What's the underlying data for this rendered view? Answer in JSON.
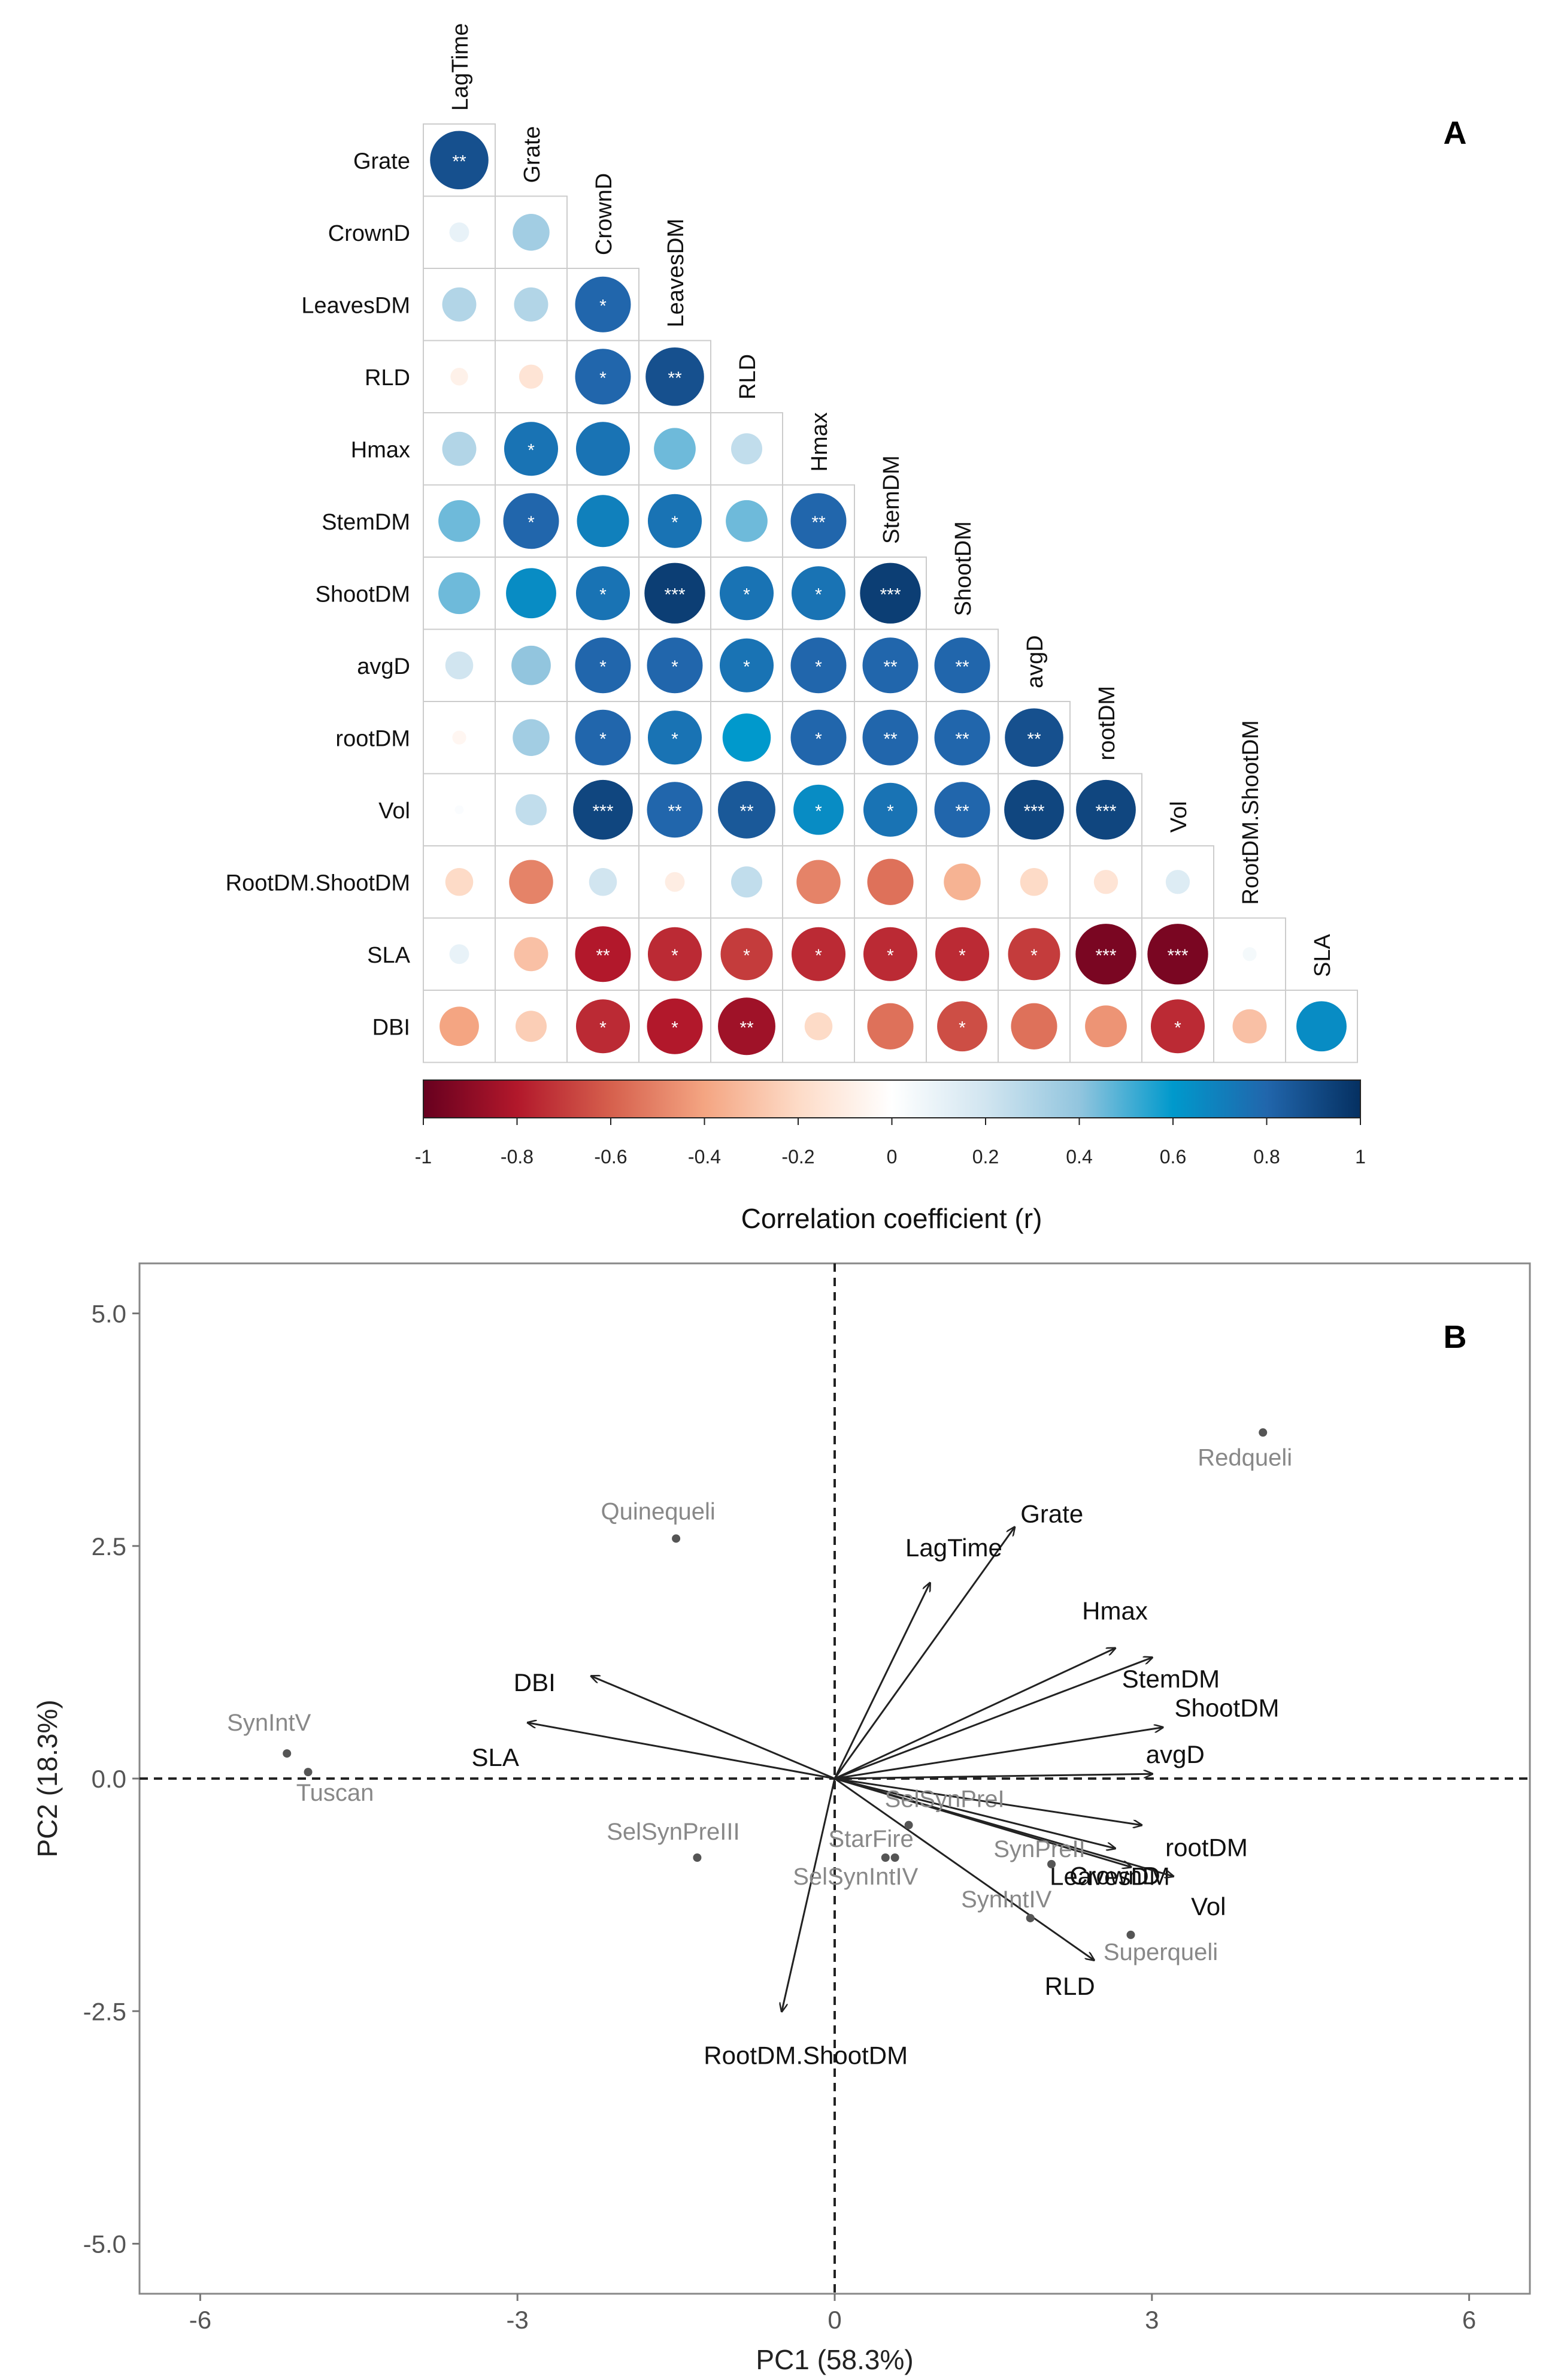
{
  "panels": {
    "a_label": "A",
    "b_label": "B"
  },
  "chart_data": [
    {
      "type": "heatmap",
      "style": "correlogram (lower triangle, circle size and colour = r)",
      "variables": [
        "LagTime",
        "Grate",
        "CrownD",
        "LeavesDM",
        "RLD",
        "Hmax",
        "StemDM",
        "ShootDM",
        "avgD",
        "rootDM",
        "Vol",
        "RootDM.ShootDM",
        "SLA",
        "DBI"
      ],
      "row_labels": [
        "Grate",
        "CrownD",
        "LeavesDM",
        "RLD",
        "Hmax",
        "StemDM",
        "ShootDM",
        "avgD",
        "rootDM",
        "Vol",
        "RootDM.ShootDM",
        "SLA",
        "DBI"
      ],
      "col_labels": [
        "LagTime",
        "Grate",
        "CrownD",
        "LeavesDM",
        "RLD",
        "Hmax",
        "StemDM",
        "ShootDM",
        "avgD",
        "rootDM",
        "Vol",
        "RootDM.ShootDM",
        "SLA"
      ],
      "values": [
        [
          0.88
        ],
        [
          0.1,
          0.35
        ],
        [
          0.3,
          0.3,
          0.8
        ],
        [
          -0.08,
          -0.15,
          0.8,
          0.88
        ],
        [
          0.3,
          0.75,
          0.75,
          0.45,
          0.25
        ],
        [
          0.45,
          0.8,
          0.7,
          0.75,
          0.45,
          0.8
        ],
        [
          0.45,
          0.65,
          0.75,
          0.95,
          0.75,
          0.75,
          0.95
        ],
        [
          0.2,
          0.4,
          0.8,
          0.8,
          0.75,
          0.8,
          0.8,
          0.8
        ],
        [
          -0.05,
          0.35,
          0.8,
          0.75,
          0.6,
          0.8,
          0.8,
          0.8,
          0.88
        ],
        [
          0.02,
          0.25,
          0.92,
          0.8,
          0.85,
          0.65,
          0.75,
          0.8,
          0.92,
          0.92
        ],
        [
          -0.2,
          -0.5,
          0.2,
          -0.1,
          0.25,
          -0.5,
          -0.55,
          -0.35,
          -0.2,
          -0.15,
          0.15
        ],
        [
          0.1,
          -0.3,
          -0.8,
          -0.75,
          -0.7,
          -0.75,
          -0.75,
          -0.75,
          -0.7,
          -0.95,
          -0.95,
          0.05
        ],
        [
          -0.4,
          -0.25,
          -0.75,
          -0.8,
          -0.85,
          -0.2,
          -0.55,
          -0.65,
          -0.55,
          -0.45,
          -0.75,
          -0.3,
          0.65
        ]
      ],
      "significance": [
        [
          "**"
        ],
        [
          "",
          ""
        ],
        [
          "",
          "",
          "*"
        ],
        [
          "",
          "",
          "*",
          "**"
        ],
        [
          "",
          "*",
          "",
          "",
          "",
          ""
        ],
        [
          "",
          "*",
          "",
          "*",
          "",
          "**"
        ],
        [
          "",
          "",
          "*",
          "***",
          "*",
          "*",
          "***"
        ],
        [
          "",
          "",
          "*",
          "*",
          "*",
          "*",
          "**",
          "**"
        ],
        [
          "",
          "",
          "*",
          "*",
          "",
          "*",
          "**",
          "**",
          "**"
        ],
        [
          "",
          "",
          "***",
          "**",
          "**",
          "*",
          "*",
          "**",
          "***",
          "***"
        ],
        [
          "",
          "",
          "",
          "",
          "",
          "",
          "",
          "",
          "",
          "",
          ""
        ],
        [
          "",
          "",
          "**",
          "*",
          "*",
          "*",
          "*",
          "*",
          "*",
          "***",
          "***",
          ""
        ],
        [
          "",
          "",
          "*",
          "*",
          "**",
          "",
          "",
          "*",
          "",
          "",
          "*",
          "",
          ""
        ]
      ],
      "legend": {
        "title": "Correlation coefficient (r)",
        "range": [
          -1,
          1
        ],
        "ticks": [
          "-1",
          "-0.8",
          "-0.6",
          "-0.4",
          "-0.2",
          "0",
          "0.2",
          "0.4",
          "0.6",
          "0.8",
          "1"
        ]
      }
    },
    {
      "type": "scatter",
      "style": "PCA biplot",
      "xlabel": "PC1 (58.3%)",
      "ylabel": "PC2 (18.3%)",
      "xlim": [
        -6.5,
        6.5
      ],
      "ylim": [
        -5.5,
        5.5
      ],
      "xticks": [
        "-6",
        "-3",
        "0",
        "3",
        "6"
      ],
      "yticks": [
        "5.0",
        "2.5",
        "0.0",
        "-2.5",
        "-5.0"
      ],
      "points": [
        {
          "name": "Redqueli",
          "x": 4.05,
          "y": 3.72
        },
        {
          "name": "Quinequeli",
          "x": -1.5,
          "y": 2.58
        },
        {
          "name": "SynIntV",
          "x": -5.18,
          "y": 0.27
        },
        {
          "name": "Tuscan",
          "x": -4.98,
          "y": 0.07
        },
        {
          "name": "SelSynPreIII",
          "x": -1.3,
          "y": -0.85
        },
        {
          "name": "SelSynPreI",
          "x": 0.7,
          "y": -0.5
        },
        {
          "name": "StarFire",
          "x": 0.57,
          "y": -0.85
        },
        {
          "name": "SelSynIntIV",
          "x": 0.48,
          "y": -0.85
        },
        {
          "name": "SynIntIV",
          "x": 1.85,
          "y": -1.5
        },
        {
          "name": "SynPreII",
          "x": 2.05,
          "y": -0.92
        },
        {
          "name": "Superqueli",
          "x": 2.8,
          "y": -1.68
        }
      ],
      "vectors": [
        {
          "name": "Grate",
          "x": 1.7,
          "y": 2.7
        },
        {
          "name": "LagTime",
          "x": 0.9,
          "y": 2.1
        },
        {
          "name": "Hmax",
          "x": 2.65,
          "y": 1.4
        },
        {
          "name": "StemDM",
          "x": 3.0,
          "y": 1.3
        },
        {
          "name": "ShootDM",
          "x": 3.1,
          "y": 0.55
        },
        {
          "name": "avgD",
          "x": 3.0,
          "y": 0.05
        },
        {
          "name": "rootDM",
          "x": 2.9,
          "y": -0.5
        },
        {
          "name": "LeavesDM",
          "x": 2.8,
          "y": -0.95
        },
        {
          "name": "Vol",
          "x": 3.2,
          "y": -1.05
        },
        {
          "name": "CrownD",
          "x": 2.65,
          "y": -0.75
        },
        {
          "name": "RLD",
          "x": 2.45,
          "y": -1.95
        },
        {
          "name": "RootDM.ShootDM",
          "x": -0.5,
          "y": -2.5
        },
        {
          "name": "DBI",
          "x": -2.3,
          "y": 1.1
        },
        {
          "name": "SLA",
          "x": -2.9,
          "y": 0.6
        }
      ]
    }
  ]
}
